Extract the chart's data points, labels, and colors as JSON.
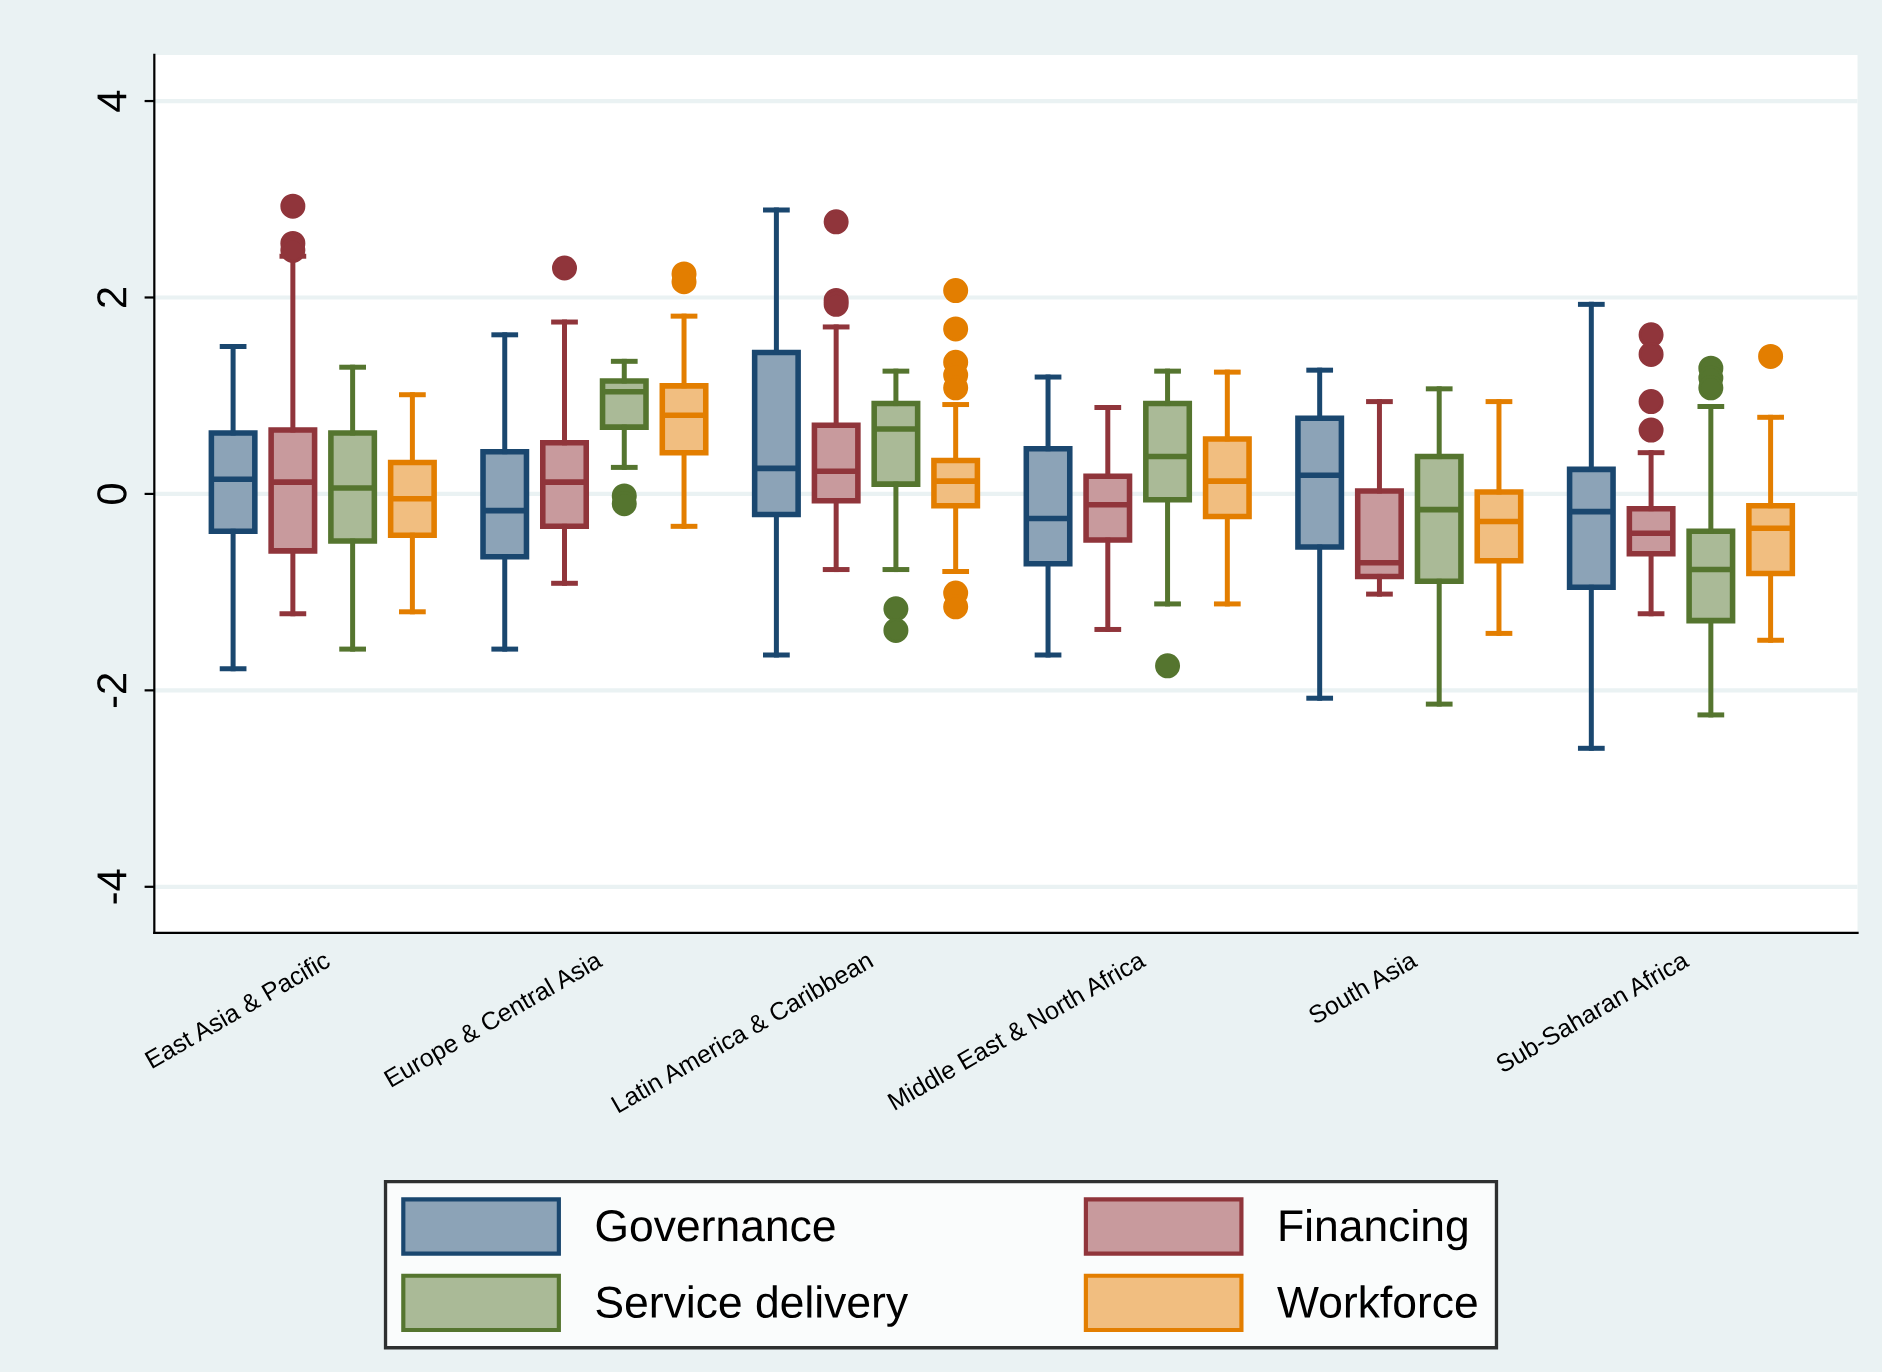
{
  "chart_data": {
    "type": "box",
    "categories": [
      "East Asia & Pacific",
      "Europe & Central Asia",
      "Latin America & Caribbean",
      "Middle East & North Africa",
      "South Asia",
      "Sub-Saharan Africa"
    ],
    "ylim": [
      -4.47,
      4.47
    ],
    "yticks": [
      -4,
      -2,
      0,
      2,
      4
    ],
    "grid": "y",
    "legend": "bottom",
    "series": [
      {
        "name": "Governance",
        "color": "#1a476f",
        "boxes": [
          {
            "low": -1.78,
            "q1": -0.38,
            "median": 0.15,
            "q3": 0.62,
            "high": 1.5
          },
          {
            "low": -1.58,
            "q1": -0.64,
            "median": -0.17,
            "q3": 0.43,
            "high": 1.62
          },
          {
            "low": -1.64,
            "q1": -0.21,
            "median": 0.26,
            "q3": 1.44,
            "high": 2.89
          },
          {
            "low": -1.64,
            "q1": -0.71,
            "median": -0.25,
            "q3": 0.46,
            "high": 1.19
          },
          {
            "low": -2.08,
            "q1": -0.54,
            "median": 0.19,
            "q3": 0.77,
            "high": 1.26
          },
          {
            "low": -2.59,
            "q1": -0.95,
            "median": -0.18,
            "q3": 0.25,
            "high": 1.93
          }
        ]
      },
      {
        "name": "Financing",
        "color": "#90353b",
        "boxes": [
          {
            "low": -1.22,
            "q1": -0.58,
            "median": 0.12,
            "q3": 0.65,
            "high": 2.42,
            "outliers": [
              2.93,
              2.55,
              2.48
            ]
          },
          {
            "low": -0.91,
            "q1": -0.33,
            "median": 0.12,
            "q3": 0.52,
            "high": 1.75,
            "outliers": [
              2.3
            ]
          },
          {
            "low": -0.77,
            "q1": -0.07,
            "median": 0.23,
            "q3": 0.7,
            "high": 1.7,
            "outliers": [
              2.77,
              1.97,
              1.93
            ]
          },
          {
            "low": -1.38,
            "q1": -0.47,
            "median": -0.11,
            "q3": 0.18,
            "high": 0.88
          },
          {
            "low": -1.02,
            "q1": -0.84,
            "median": -0.7,
            "q3": 0.03,
            "high": 0.94
          },
          {
            "low": -1.22,
            "q1": -0.61,
            "median": -0.4,
            "q3": -0.15,
            "high": 0.42,
            "outliers": [
              1.62,
              1.42,
              0.94,
              0.65
            ]
          }
        ]
      },
      {
        "name": "Service delivery",
        "color": "#55752f",
        "boxes": [
          {
            "low": -1.58,
            "q1": -0.48,
            "median": 0.06,
            "q3": 0.62,
            "high": 1.29
          },
          {
            "low": 0.27,
            "q1": 0.68,
            "median": 1.04,
            "q3": 1.15,
            "high": 1.35,
            "outliers": [
              -0.02,
              -0.1
            ]
          },
          {
            "low": -0.77,
            "q1": 0.1,
            "median": 0.66,
            "q3": 0.92,
            "high": 1.25,
            "outliers": [
              -1.17,
              -1.39
            ]
          },
          {
            "low": -1.12,
            "q1": -0.06,
            "median": 0.38,
            "q3": 0.92,
            "high": 1.25,
            "outliers": [
              -1.75
            ]
          },
          {
            "low": -2.14,
            "q1": -0.89,
            "median": -0.16,
            "q3": 0.38,
            "high": 1.07
          },
          {
            "low": -2.25,
            "q1": -1.29,
            "median": -0.77,
            "q3": -0.38,
            "high": 0.89,
            "outliers": [
              1.28,
              1.18,
              1.08
            ]
          }
        ]
      },
      {
        "name": "Workforce",
        "color": "#e37e00",
        "boxes": [
          {
            "low": -1.2,
            "q1": -0.42,
            "median": -0.05,
            "q3": 0.32,
            "high": 1.01
          },
          {
            "low": -0.33,
            "q1": 0.42,
            "median": 0.8,
            "q3": 1.1,
            "high": 1.81,
            "outliers": [
              2.24,
              2.16
            ]
          },
          {
            "low": -0.79,
            "q1": -0.12,
            "median": 0.13,
            "q3": 0.34,
            "high": 0.91,
            "outliers": [
              2.07,
              1.68,
              1.34,
              1.21,
              1.08,
              -1.01,
              -1.15
            ]
          },
          {
            "low": -1.12,
            "q1": -0.23,
            "median": 0.13,
            "q3": 0.56,
            "high": 1.24
          },
          {
            "low": -1.42,
            "q1": -0.68,
            "median": -0.28,
            "q3": 0.02,
            "high": 0.94
          },
          {
            "low": -1.49,
            "q1": -0.81,
            "median": -0.35,
            "q3": -0.12,
            "high": 0.78,
            "outliers": [
              1.4
            ]
          }
        ]
      }
    ]
  }
}
